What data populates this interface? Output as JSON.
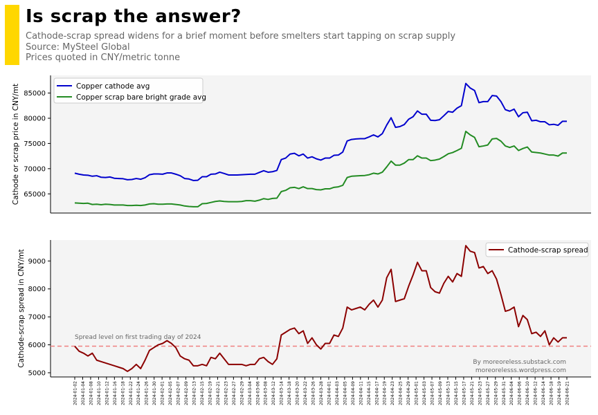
{
  "header": {
    "title": "Is scrap the answer?",
    "subtitle": "Cathode-scrap spread widens for a brief moment before smelters start tapping on scrap supply",
    "source": "Source: MySteel Global",
    "units": "Prices quoted in CNY/metric tonne",
    "accent_color": "#FFD700"
  },
  "chart_data": [
    {
      "type": "line",
      "ylabel": "Cathode or scrap price in CNY/mt",
      "ylim": [
        61200,
        88500
      ],
      "yticks": [
        65000,
        70000,
        75000,
        80000,
        85000
      ],
      "ytick_labels": [
        "65000",
        "70000",
        "75000",
        "80000",
        "85000"
      ],
      "grid": false,
      "legend_position": "top-left",
      "series": [
        {
          "name": "Copper cathode avg",
          "color": "#0000CD",
          "values": [
            69100,
            68900,
            68750,
            68700,
            68500,
            68600,
            68300,
            68250,
            68350,
            68100,
            68050,
            68000,
            67800,
            67850,
            68050,
            67900,
            68200,
            68800,
            68950,
            68950,
            68900,
            69150,
            69150,
            68900,
            68600,
            68050,
            67950,
            67650,
            67700,
            68400,
            68400,
            68900,
            68950,
            69300,
            69050,
            68750,
            68750,
            68750,
            68800,
            68850,
            68900,
            68900,
            69250,
            69600,
            69300,
            69400,
            69650,
            71800,
            72100,
            72900,
            73050,
            72550,
            72900,
            72100,
            72350,
            71950,
            71700,
            72100,
            72100,
            72650,
            72700,
            73300,
            75500,
            75800,
            75900,
            75950,
            75950,
            76300,
            76700,
            76300,
            76950,
            78650,
            80100,
            78200,
            78350,
            78750,
            79800,
            80300,
            81450,
            80800,
            80800,
            79600,
            79550,
            79700,
            80500,
            81350,
            81200,
            82000,
            82500,
            86900,
            86000,
            85500,
            83100,
            83300,
            83300,
            84500,
            84400,
            83300,
            81700,
            81400,
            81800,
            80300,
            81100,
            81200,
            79500,
            79600,
            79300,
            79300,
            78700,
            78800,
            78600,
            79400,
            79400
          ]
        },
        {
          "name": "Copper scrap bare bright grade avg",
          "color": "#228B22",
          "values": [
            63200,
            63150,
            63100,
            63150,
            62900,
            62950,
            62850,
            62950,
            62900,
            62800,
            62800,
            62800,
            62700,
            62700,
            62750,
            62700,
            62800,
            63000,
            63050,
            62950,
            62950,
            63000,
            63000,
            62900,
            62800,
            62600,
            62500,
            62450,
            62450,
            63050,
            63100,
            63300,
            63500,
            63600,
            63500,
            63450,
            63450,
            63450,
            63500,
            63650,
            63650,
            63550,
            63750,
            64050,
            63900,
            64100,
            64150,
            65450,
            65700,
            66200,
            66300,
            66050,
            66400,
            66050,
            66050,
            65850,
            65800,
            66000,
            66000,
            66300,
            66400,
            66700,
            68250,
            68500,
            68550,
            68600,
            68650,
            68800,
            69100,
            68950,
            69300,
            70350,
            71500,
            70700,
            70700,
            71100,
            71800,
            71800,
            72550,
            72100,
            72100,
            71600,
            71700,
            71900,
            72400,
            72950,
            73200,
            73600,
            74050,
            77400,
            76700,
            76200,
            74350,
            74500,
            74700,
            75900,
            76000,
            75450,
            74500,
            74200,
            74500,
            73600,
            74000,
            74300,
            73300,
            73200,
            73100,
            72900,
            72700,
            72700,
            72500,
            73100,
            73100
          ]
        }
      ]
    },
    {
      "type": "line",
      "ylabel": "Cathode-scrap spread in CNY/mt",
      "ylim": [
        4850,
        9750
      ],
      "yticks": [
        5000,
        6000,
        7000,
        8000,
        9000
      ],
      "ytick_labels": [
        "5000",
        "6000",
        "7000",
        "8000",
        "9000"
      ],
      "grid": false,
      "legend_position": "top-right",
      "series": [
        {
          "name": "Cathode-scrap spread",
          "color": "#8B0000",
          "values": [
            5950,
            5770,
            5700,
            5600,
            5700,
            5450,
            5400,
            5350,
            5300,
            5250,
            5200,
            5150,
            5050,
            5150,
            5300,
            5150,
            5450,
            5800,
            5900,
            6000,
            6050,
            6150,
            6050,
            5900,
            5600,
            5500,
            5450,
            5250,
            5250,
            5300,
            5250,
            5550,
            5500,
            5700,
            5500,
            5300,
            5300,
            5300,
            5300,
            5250,
            5300,
            5300,
            5500,
            5550,
            5400,
            5300,
            5500,
            6350,
            6450,
            6550,
            6600,
            6400,
            6500,
            6050,
            6250,
            6000,
            5850,
            6050,
            6050,
            6350,
            6300,
            6600,
            7350,
            7250,
            7300,
            7350,
            7250,
            7450,
            7600,
            7350,
            7600,
            8400,
            8700,
            7550,
            7600,
            7650,
            8100,
            8500,
            8950,
            8650,
            8650,
            8050,
            7900,
            7850,
            8200,
            8450,
            8250,
            8550,
            8450,
            9550,
            9350,
            9300,
            8750,
            8800,
            8550,
            8650,
            8350,
            7800,
            7200,
            7250,
            7350,
            6650,
            7050,
            6900,
            6400,
            6450,
            6300,
            6500,
            6000,
            6250,
            6100,
            6250,
            6250
          ]
        }
      ],
      "reference_line": {
        "value": 5950,
        "color": "#F08080",
        "label": "Spread level on first trading day of 2024"
      },
      "annotation": [
        "By moreoreless.substack.com",
        "moreorelesss.wordpress.com"
      ],
      "x_tick_labels": [
        "2024-01-02",
        "2024-01-04",
        "2024-01-08",
        "2024-01-10",
        "2024-01-12",
        "2024-01-16",
        "2024-01-18",
        "2024-01-22",
        "2024-01-24",
        "2024-01-26",
        "2024-01-30",
        "2024-02-01",
        "2024-02-05",
        "2024-02-07",
        "2024-02-09",
        "2024-02-13",
        "2024-02-15",
        "2024-02-19",
        "2024-02-21",
        "2024-02-23",
        "2024-02-27",
        "2024-02-29",
        "2024-03-04",
        "2024-03-06",
        "2024-03-08",
        "2024-03-12",
        "2024-03-14",
        "2024-03-18",
        "2024-03-20",
        "2024-03-22",
        "2024-03-26",
        "2024-03-28",
        "2024-04-01",
        "2024-04-03",
        "2024-04-05",
        "2024-04-09",
        "2024-04-11",
        "2024-04-15",
        "2024-04-17",
        "2024-04-19",
        "2024-04-23",
        "2024-04-25",
        "2024-04-29",
        "2024-05-01",
        "2024-05-03",
        "2024-05-07",
        "2024-05-09",
        "2024-05-13",
        "2024-05-15",
        "2024-05-17",
        "2024-05-21",
        "2024-05-23",
        "2024-05-27",
        "2024-05-29",
        "2024-05-31",
        "2024-06-04",
        "2024-06-06",
        "2024-06-10",
        "2024-06-12",
        "2024-06-14",
        "2024-06-18",
        "2024-06-19",
        "2024-06-21"
      ]
    }
  ]
}
